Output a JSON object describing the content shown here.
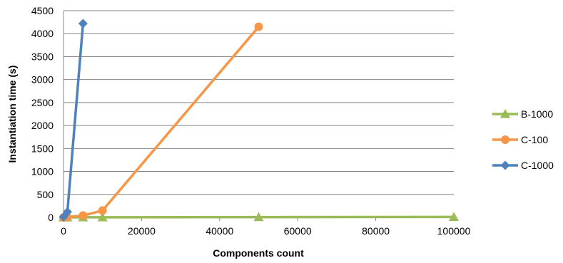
{
  "chart_data": {
    "type": "line",
    "title": "",
    "xlabel": "Components count",
    "ylabel": "Instantiation time (s)",
    "xlim": [
      0,
      100000
    ],
    "ylim": [
      0,
      4500
    ],
    "xticks": [
      0,
      20000,
      40000,
      60000,
      80000,
      100000
    ],
    "yticks": [
      0,
      500,
      1000,
      1500,
      2000,
      2500,
      3000,
      3500,
      4000,
      4500
    ],
    "grid": "horizontal",
    "legend_position": "right",
    "series": [
      {
        "name": "B-1000",
        "color": "#9BBB59",
        "marker": "triangle",
        "points": [
          [
            0,
            0
          ],
          [
            1000,
            0
          ],
          [
            5000,
            1
          ],
          [
            10000,
            2
          ],
          [
            50000,
            6
          ],
          [
            100000,
            10
          ]
        ]
      },
      {
        "name": "C-100",
        "color": "#F79646",
        "marker": "circle",
        "points": [
          [
            0,
            0
          ],
          [
            1000,
            5
          ],
          [
            5000,
            40
          ],
          [
            10000,
            150
          ],
          [
            50000,
            4150
          ]
        ]
      },
      {
        "name": "C-1000",
        "color": "#4F81BD",
        "marker": "diamond",
        "points": [
          [
            0,
            10
          ],
          [
            1000,
            120
          ],
          [
            5000,
            4220
          ]
        ]
      }
    ]
  }
}
